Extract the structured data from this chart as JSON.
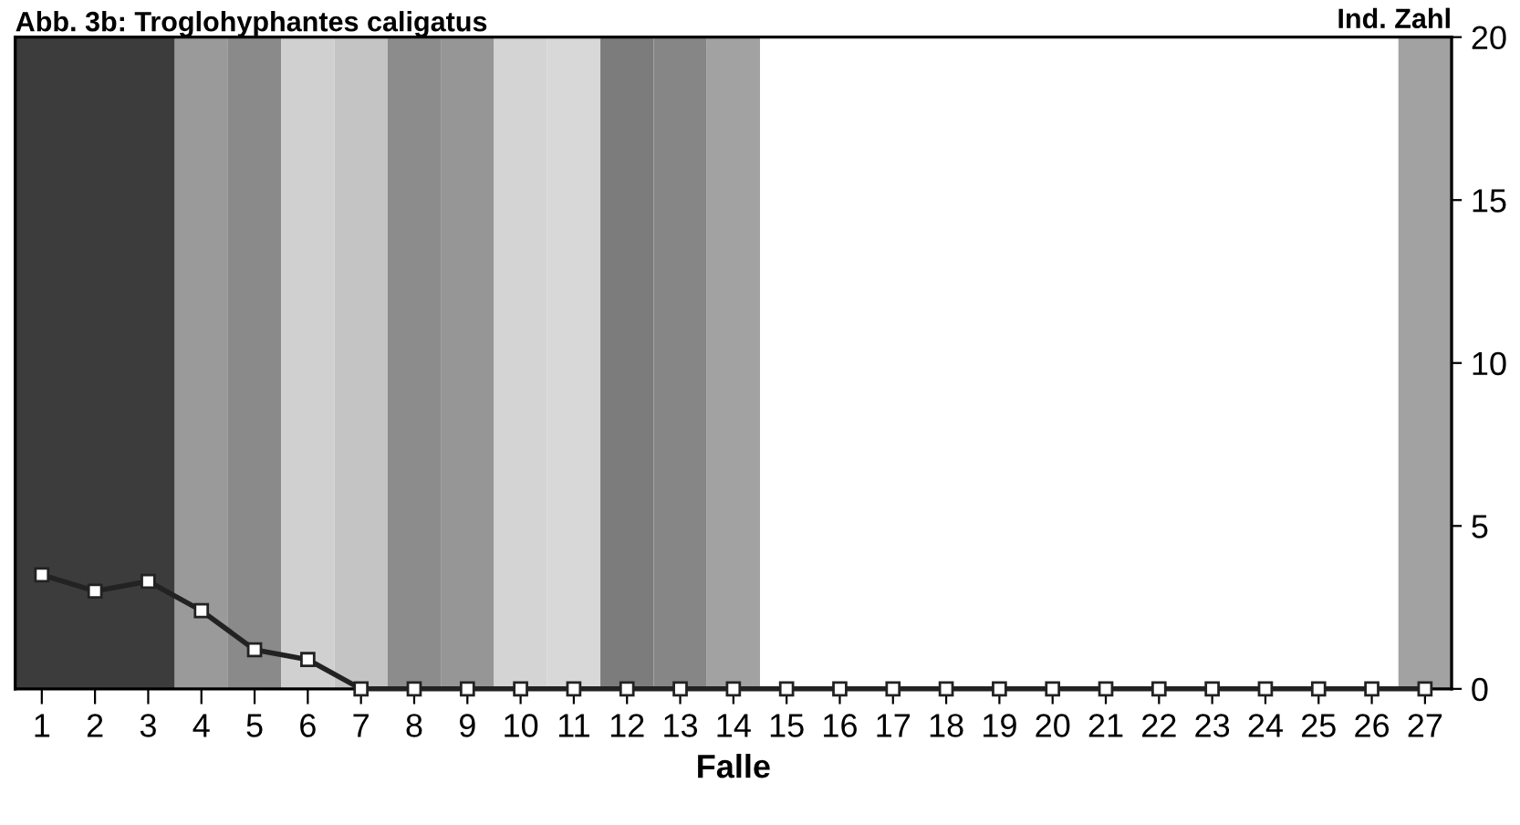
{
  "chart_data": {
    "type": "line",
    "title": "Abb. 3b: Troglohyphantes caligatus",
    "xlabel": "Falle",
    "ylabel": "Ind. Zahl",
    "categories": [
      "1",
      "2",
      "3",
      "4",
      "5",
      "6",
      "7",
      "8",
      "9",
      "10",
      "11",
      "12",
      "13",
      "14",
      "15",
      "16",
      "17",
      "18",
      "19",
      "20",
      "21",
      "22",
      "23",
      "24",
      "25",
      "26",
      "27"
    ],
    "series": [
      {
        "color": "#222222",
        "values": [
          3.5,
          3.0,
          3.3,
          2.4,
          1.2,
          0.9,
          0,
          0,
          0,
          0,
          0,
          0,
          0,
          0,
          0,
          0,
          0,
          0,
          0,
          0,
          0,
          0,
          0,
          0,
          0,
          0,
          0
        ]
      }
    ],
    "ylim": [
      0,
      20
    ],
    "yticks": [
      0,
      5,
      10,
      15,
      20
    ],
    "marker": "square",
    "grid": false,
    "legend": false,
    "bands": [
      {
        "axis": "x",
        "from": "1",
        "to": "3",
        "color": "#3c3c3c"
      },
      {
        "axis": "x",
        "from": "4",
        "to": "4",
        "color": "#9a9a9a"
      },
      {
        "axis": "x",
        "from": "5",
        "to": "5",
        "color": "#8a8a8a"
      },
      {
        "axis": "x",
        "from": "6",
        "to": "6",
        "color": "#d0d0d0"
      },
      {
        "axis": "x",
        "from": "7",
        "to": "7",
        "color": "#c4c4c4"
      },
      {
        "axis": "x",
        "from": "8",
        "to": "8",
        "color": "#8c8c8c"
      },
      {
        "axis": "x",
        "from": "9",
        "to": "9",
        "color": "#969696"
      },
      {
        "axis": "x",
        "from": "10",
        "to": "10",
        "color": "#d4d4d4"
      },
      {
        "axis": "x",
        "from": "11",
        "to": "11",
        "color": "#d8d8d8"
      },
      {
        "axis": "x",
        "from": "12",
        "to": "12",
        "color": "#7c7c7c"
      },
      {
        "axis": "x",
        "from": "13",
        "to": "13",
        "color": "#868686"
      },
      {
        "axis": "x",
        "from": "14",
        "to": "14",
        "color": "#a2a2a2"
      },
      {
        "axis": "x",
        "from": "27",
        "to": "27",
        "color": "#a2a2a2"
      }
    ]
  }
}
